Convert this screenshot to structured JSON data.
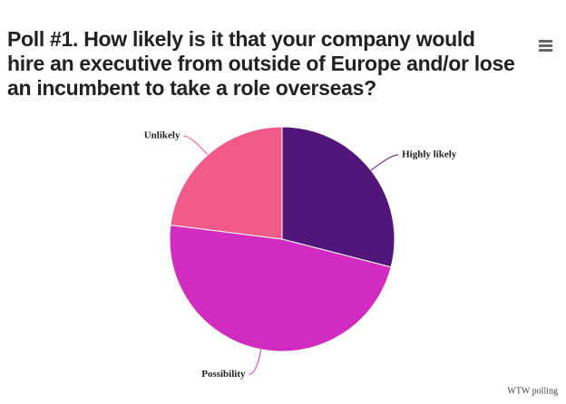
{
  "chart_data": {
    "type": "pie",
    "title": "Poll #1. How likely is it that your company would hire an executive from outside of Europe and/or lose an incumbent to take a role overseas?",
    "categories": [
      "Highly likely",
      "Possibility",
      "Unlikely"
    ],
    "values": [
      29,
      48,
      23
    ],
    "colors": [
      "#52157a",
      "#d12bbf",
      "#f25a8a"
    ],
    "credit": "WTW polling"
  }
}
